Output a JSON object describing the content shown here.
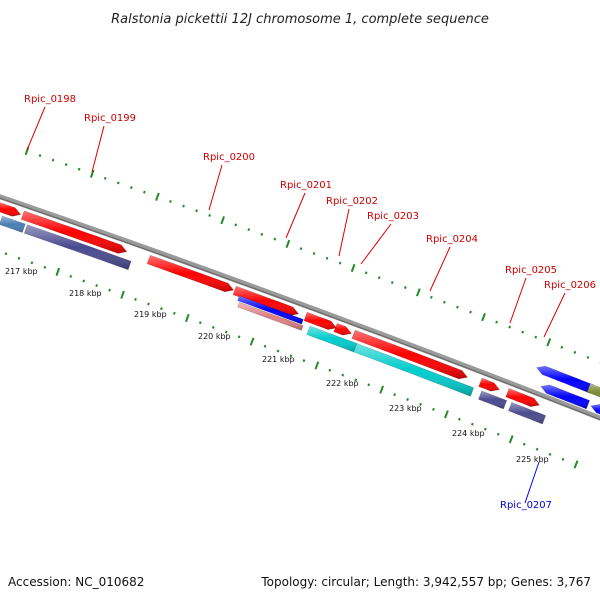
{
  "title": "Ralstonia pickettii 12J chromosome 1, complete sequence",
  "footer": {
    "accession": "Accession: NC_010682",
    "summary": "Topology: circular; Length: 3,942,557 bp; Genes: 3,767"
  },
  "scale_labels": [
    "217 kbp",
    "218 kbp",
    "219 kbp",
    "220 kbp",
    "221 kbp",
    "222 kbp",
    "223 kbp",
    "224 kbp",
    "225 kbp"
  ],
  "genes": [
    {
      "id": "Rpic_0198",
      "label": "Rpic_0198",
      "strand": "forward",
      "color": "#ff0000",
      "label_color": "#cc0000"
    },
    {
      "id": "Rpic_0199",
      "label": "Rpic_0199",
      "strand": "forward",
      "color": "#ff0000",
      "label_color": "#cc0000"
    },
    {
      "id": "Rpic_0200",
      "label": "Rpic_0200",
      "strand": "forward",
      "color": "#ff0000",
      "label_color": "#cc0000"
    },
    {
      "id": "Rpic_0201",
      "label": "Rpic_0201",
      "strand": "forward",
      "color": "#ff0000",
      "label_color": "#cc0000"
    },
    {
      "id": "Rpic_0202",
      "label": "Rpic_0202",
      "strand": "forward",
      "color": "#ff0000",
      "label_color": "#cc0000"
    },
    {
      "id": "Rpic_0203",
      "label": "Rpic_0203",
      "strand": "forward",
      "color": "#ff0000",
      "label_color": "#cc0000"
    },
    {
      "id": "Rpic_0204",
      "label": "Rpic_0204",
      "strand": "forward",
      "color": "#ff0000",
      "label_color": "#cc0000"
    },
    {
      "id": "Rpic_0205",
      "label": "Rpic_0205",
      "strand": "forward",
      "color": "#ff0000",
      "label_color": "#cc0000"
    },
    {
      "id": "Rpic_0206",
      "label": "Rpic_0206",
      "strand": "forward",
      "color": "#ff0000",
      "label_color": "#cc0000"
    },
    {
      "id": "Rpic_0207",
      "label": "Rpic_0207",
      "strand": "reverse",
      "color": "#0000ff",
      "label_color": "#0000cc"
    }
  ],
  "colors": {
    "backbone": "#808080",
    "forward_cds": "#ff0000",
    "reverse_cds": "#0000ff",
    "cog_cyan": "#00cccc",
    "cog_purple": "#4a4a90",
    "cog_steel": "#4a7fb5",
    "cog_pink": "#e08080",
    "cog_olive": "#7a8a30",
    "tick": "#228b22"
  }
}
